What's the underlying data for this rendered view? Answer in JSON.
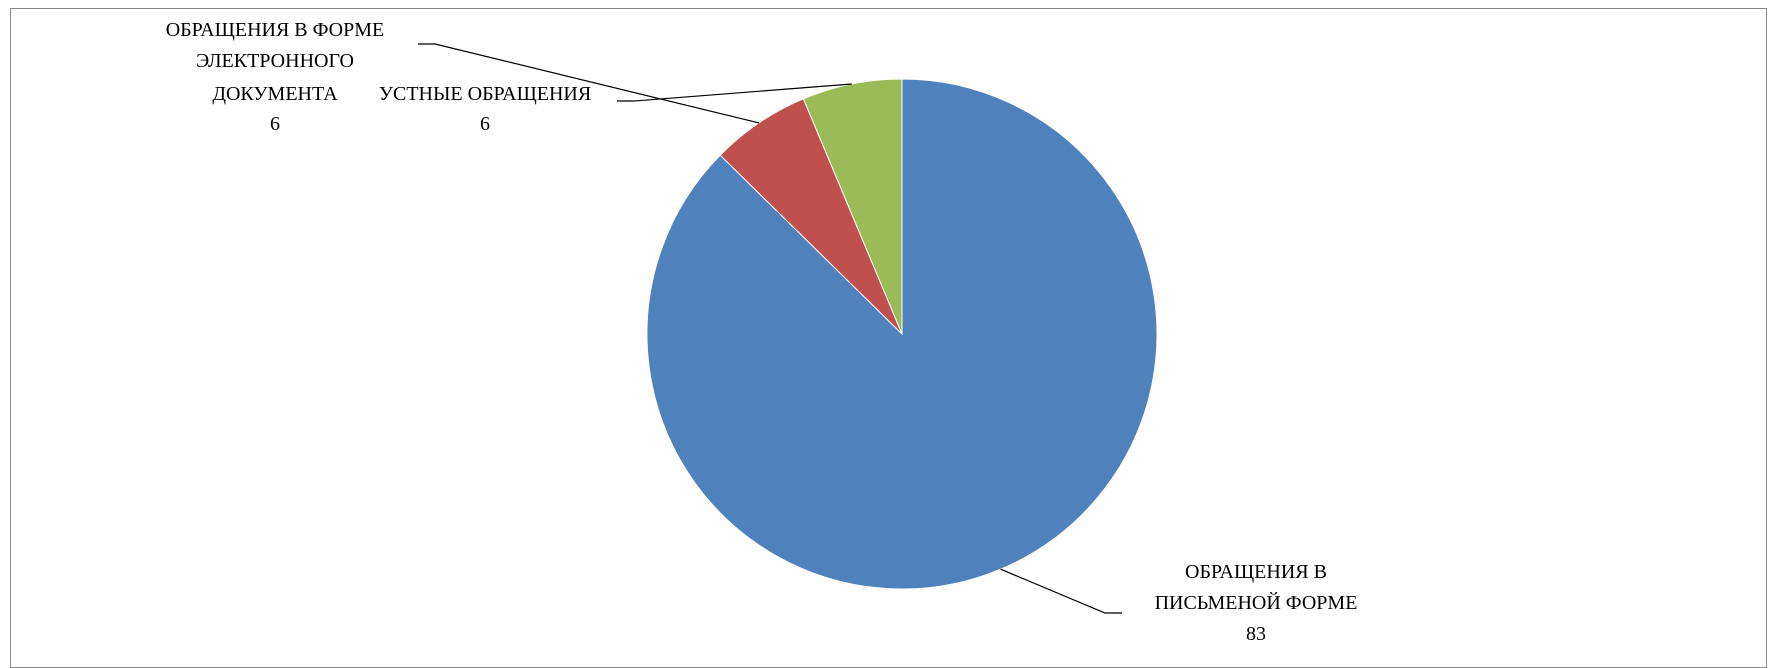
{
  "chart_data": {
    "type": "pie",
    "title": "",
    "start_angle_deg": 0,
    "direction": "clockwise",
    "slices": [
      {
        "label_lines": [
          "ОБРАЩЕНИЯ В",
          "ПИСЬМЕНОЙ ФОРМЕ"
        ],
        "value": 83,
        "color": "#4f81bd"
      },
      {
        "label_lines": [
          "ОБРАЩЕНИЯ В ФОРМЕ",
          "ЭЛЕКТРОННОГО",
          "ДОКУМЕНТА"
        ],
        "value": 6,
        "color": "#c0504d"
      },
      {
        "label_lines": [
          "УСТНЫЕ ОБРАЩЕНИЯ"
        ],
        "value": 6,
        "color": "#9bbb59"
      }
    ],
    "legend": "none"
  }
}
